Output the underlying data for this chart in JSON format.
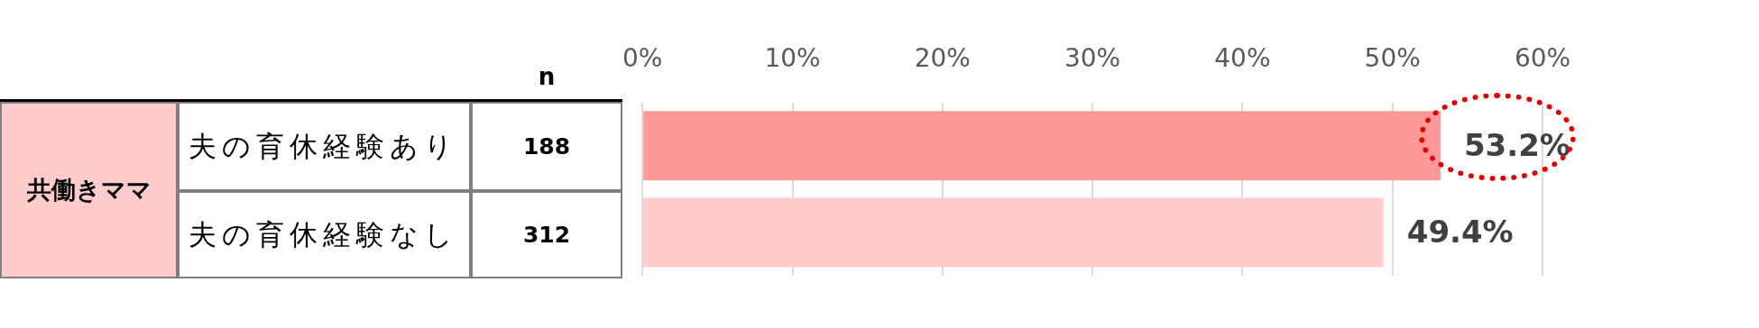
{
  "chart_data": {
    "type": "bar",
    "orientation": "horizontal",
    "categories": [
      "夫の育休経験あり",
      "夫の育休経験なし"
    ],
    "values": [
      53.2,
      49.4
    ],
    "colors": [
      "#ff9999",
      "#ffcccc"
    ],
    "xlim": [
      0,
      60
    ],
    "xticks": [
      {
        "value": 0,
        "label": "0%"
      },
      {
        "value": 10,
        "label": "10%"
      },
      {
        "value": 20,
        "label": "20%"
      },
      {
        "value": 30,
        "label": "30%"
      },
      {
        "value": 40,
        "label": "40%"
      },
      {
        "value": 50,
        "label": "50%"
      },
      {
        "value": 60,
        "label": "60%"
      }
    ],
    "value_labels": [
      "53.2%",
      "49.4%"
    ],
    "annotations": [
      "共働きママ",
      "n",
      "188",
      "312"
    ],
    "grid": "x",
    "legend": false,
    "tick_labels": "x"
  }
}
